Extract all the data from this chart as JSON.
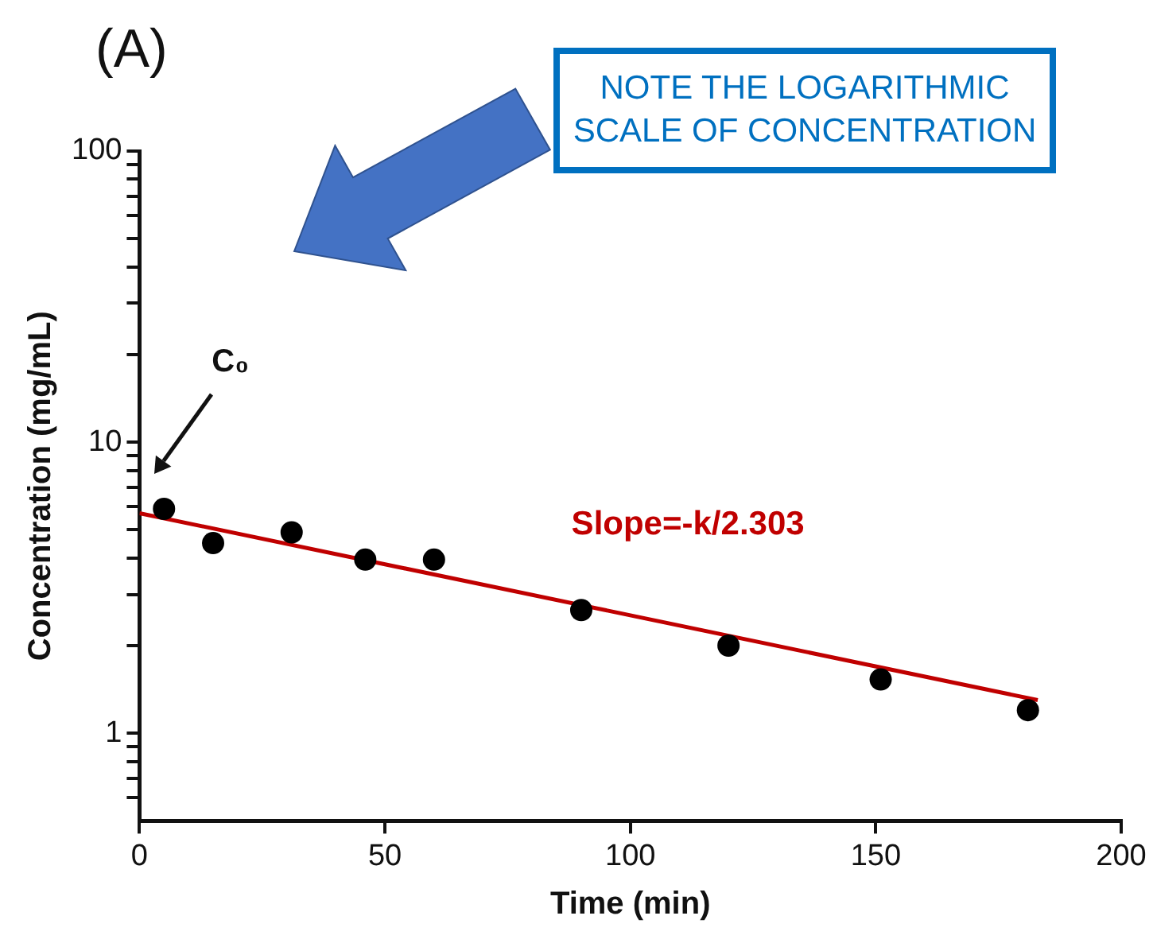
{
  "chart_data": {
    "type": "scatter",
    "title": "(A)",
    "xlabel": "Time (min)",
    "ylabel": "Concentration (mg/mL)",
    "x": [
      5,
      15,
      31,
      46,
      60,
      90,
      120,
      151,
      181
    ],
    "series": [
      {
        "type": "scatter",
        "color": "#000000",
        "values": [
          5.9,
          4.5,
          4.9,
          3.95,
          3.95,
          2.65,
          2.0,
          1.53,
          1.2
        ]
      },
      {
        "type": "line",
        "color": "#c00000",
        "x": [
          0,
          183
        ],
        "values": [
          5.7,
          1.3
        ],
        "marker": "none"
      }
    ],
    "xlim": [
      0,
      200
    ],
    "xticks": [
      0,
      50,
      100,
      150,
      200
    ],
    "ylim": [
      0.5,
      100
    ],
    "log": true,
    "yticks": [
      {
        "value": 0.6,
        "label": null
      },
      {
        "value": 0.7,
        "label": null
      },
      {
        "value": 0.8,
        "label": null
      },
      {
        "value": 0.9,
        "label": null
      },
      1,
      {
        "value": 2,
        "label": null
      },
      {
        "value": 3,
        "label": null
      },
      {
        "value": 4,
        "label": null
      },
      {
        "value": 5,
        "label": null
      },
      {
        "value": 6,
        "label": null
      },
      {
        "value": 7,
        "label": null
      },
      {
        "value": 8,
        "label": null
      },
      {
        "value": 9,
        "label": null
      },
      10,
      {
        "value": 20,
        "label": null
      },
      {
        "value": 30,
        "label": null
      },
      {
        "value": 40,
        "label": null
      },
      {
        "value": 50,
        "label": null
      },
      {
        "value": 60,
        "label": null
      },
      {
        "value": 70,
        "label": null
      },
      {
        "value": 80,
        "label": null
      },
      {
        "value": 90,
        "label": null
      },
      100
    ],
    "annotations": [
      "C₀",
      "Slope=-k/2.303",
      "NOTE THE LOGARITHMIC SCALE OF CONCENTRATION"
    ],
    "grid": false,
    "legend": false,
    "marker": "circle"
  }
}
